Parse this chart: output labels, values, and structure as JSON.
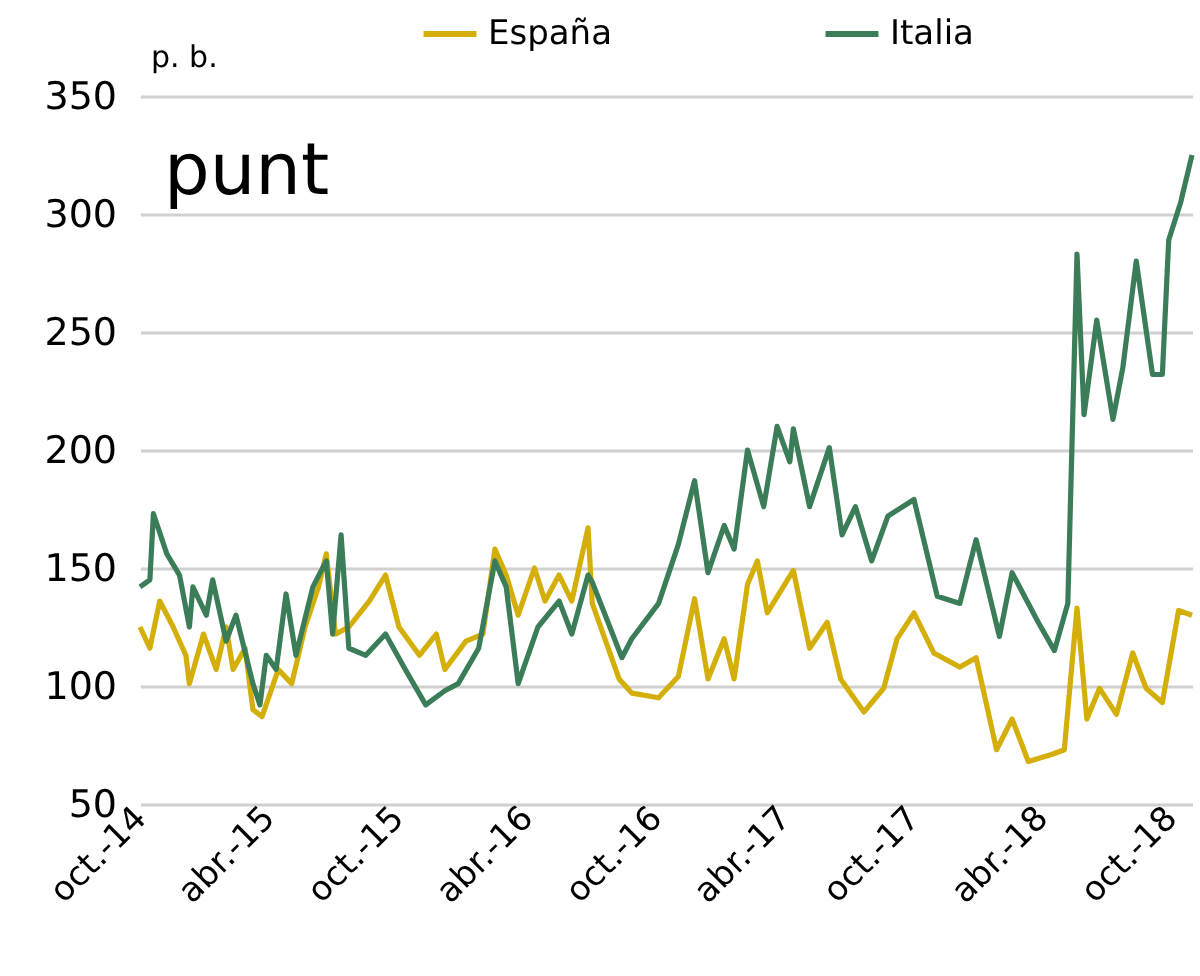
{
  "chart_data": {
    "type": "line",
    "ylabel": "p. b.",
    "annotations": [
      "punt"
    ],
    "xlim": [
      "2014-10-01",
      "2018-10-31"
    ],
    "xticks": [
      {
        "value": "2014-10-01",
        "label": "oct.-14"
      },
      {
        "value": "2015-04-01",
        "label": "abr.-15"
      },
      {
        "value": "2015-10-01",
        "label": "oct.-15"
      },
      {
        "value": "2016-04-01",
        "label": "abr.-16"
      },
      {
        "value": "2016-10-01",
        "label": "oct.-16"
      },
      {
        "value": "2017-04-01",
        "label": "abr.-17"
      },
      {
        "value": "2017-10-01",
        "label": "oct.-17"
      },
      {
        "value": "2018-04-01",
        "label": "abr.-18"
      },
      {
        "value": "2018-10-01",
        "label": "oct.-18"
      }
    ],
    "ylim": [
      50,
      350
    ],
    "yticks": [
      50,
      100,
      150,
      200,
      250,
      300,
      350
    ],
    "grid": "y",
    "legend": "top",
    "marker": "none",
    "line_style": "solid",
    "series": [
      {
        "name": "España",
        "color": "#d4af0a",
        "x": [
          "2014-10-01",
          "2014-10-15",
          "2014-10-29",
          "2014-11-17",
          "2014-12-05",
          "2014-12-10",
          "2014-12-30",
          "2015-01-17",
          "2015-01-31",
          "2015-02-10",
          "2015-02-27",
          "2015-03-10",
          "2015-03-23",
          "2015-04-15",
          "2015-05-04",
          "2015-05-23",
          "2015-06-11",
          "2015-06-22",
          "2015-07-05",
          "2015-07-24",
          "2015-08-22",
          "2015-09-14",
          "2015-10-03",
          "2015-11-01",
          "2015-11-25",
          "2015-12-07",
          "2016-01-06",
          "2016-01-30",
          "2016-02-16",
          "2016-03-03",
          "2016-03-20",
          "2016-04-12",
          "2016-04-27",
          "2016-05-17",
          "2016-06-04",
          "2016-06-27",
          "2016-07-03",
          "2016-08-10",
          "2016-08-28",
          "2016-10-05",
          "2016-11-02",
          "2016-11-25",
          "2016-12-14",
          "2017-01-06",
          "2017-01-20",
          "2017-02-08",
          "2017-02-22",
          "2017-03-08",
          "2017-04-14",
          "2017-05-07",
          "2017-06-01",
          "2017-06-20",
          "2017-07-23",
          "2017-08-20",
          "2017-09-08",
          "2017-10-02",
          "2017-10-30",
          "2017-12-06",
          "2017-12-29",
          "2018-01-27",
          "2018-02-18",
          "2018-03-13",
          "2018-04-15",
          "2018-05-03",
          "2018-05-21",
          "2018-06-04",
          "2018-06-22",
          "2018-07-16",
          "2018-08-08",
          "2018-08-27",
          "2018-09-19",
          "2018-10-12",
          "2018-10-31"
        ],
        "values": [
          125,
          116,
          136,
          125,
          113,
          101,
          122,
          107,
          125,
          107,
          116,
          90,
          87,
          107,
          101,
          125,
          142,
          156,
          122,
          125,
          136,
          147,
          125,
          113,
          122,
          107,
          119,
          122,
          158,
          147,
          130,
          150,
          136,
          147,
          136,
          167,
          135,
          103,
          97,
          95,
          104,
          137,
          103,
          120,
          103,
          143,
          153,
          131,
          149,
          116,
          127,
          103,
          89,
          99,
          120,
          131,
          114,
          108,
          112,
          73,
          86,
          68,
          71,
          73,
          133,
          86,
          99,
          88,
          114,
          99,
          93,
          132,
          130
        ]
      },
      {
        "name": "Italia",
        "color": "#3a7d58",
        "x": [
          "2014-10-01",
          "2014-10-15",
          "2014-10-20",
          "2014-11-08",
          "2014-11-26",
          "2014-12-10",
          "2014-12-15",
          "2015-01-03",
          "2015-01-12",
          "2015-01-31",
          "2015-02-14",
          "2015-03-10",
          "2015-03-20",
          "2015-03-29",
          "2015-04-12",
          "2015-04-26",
          "2015-05-10",
          "2015-06-03",
          "2015-06-22",
          "2015-07-01",
          "2015-07-13",
          "2015-07-24",
          "2015-08-17",
          "2015-09-14",
          "2015-10-12",
          "2015-11-10",
          "2015-12-07",
          "2015-12-26",
          "2016-01-24",
          "2016-02-16",
          "2016-03-03",
          "2016-03-20",
          "2016-04-17",
          "2016-05-17",
          "2016-06-04",
          "2016-06-27",
          "2016-07-03",
          "2016-08-14",
          "2016-08-28",
          "2016-10-05",
          "2016-11-02",
          "2016-11-25",
          "2016-12-14",
          "2017-01-06",
          "2017-01-20",
          "2017-02-08",
          "2017-03-03",
          "2017-03-22",
          "2017-04-09",
          "2017-04-14",
          "2017-05-07",
          "2017-06-04",
          "2017-06-22",
          "2017-07-11",
          "2017-08-03",
          "2017-08-26",
          "2017-10-02",
          "2017-11-04",
          "2017-12-06",
          "2017-12-29",
          "2018-01-31",
          "2018-02-18",
          "2018-03-27",
          "2018-04-19",
          "2018-05-08",
          "2018-05-21",
          "2018-05-31",
          "2018-06-18",
          "2018-07-11",
          "2018-07-25",
          "2018-08-13",
          "2018-09-05",
          "2018-09-19",
          "2018-09-28",
          "2018-10-15",
          "2018-10-31"
        ],
        "values": [
          142,
          145,
          173,
          156,
          147,
          125,
          142,
          130,
          145,
          119,
          130,
          101,
          92,
          113,
          107,
          139,
          113,
          142,
          153,
          122,
          164,
          116,
          113,
          122,
          107,
          92,
          98,
          101,
          116,
          153,
          142,
          101,
          125,
          136,
          122,
          147,
          144,
          112,
          120,
          135,
          160,
          187,
          148,
          168,
          158,
          200,
          176,
          210,
          195,
          209,
          176,
          201,
          164,
          176,
          153,
          172,
          179,
          138,
          135,
          162,
          121,
          148,
          127,
          115,
          135,
          283,
          215,
          255,
          213,
          235,
          280,
          232,
          232,
          289,
          305,
          325
        ]
      }
    ]
  }
}
